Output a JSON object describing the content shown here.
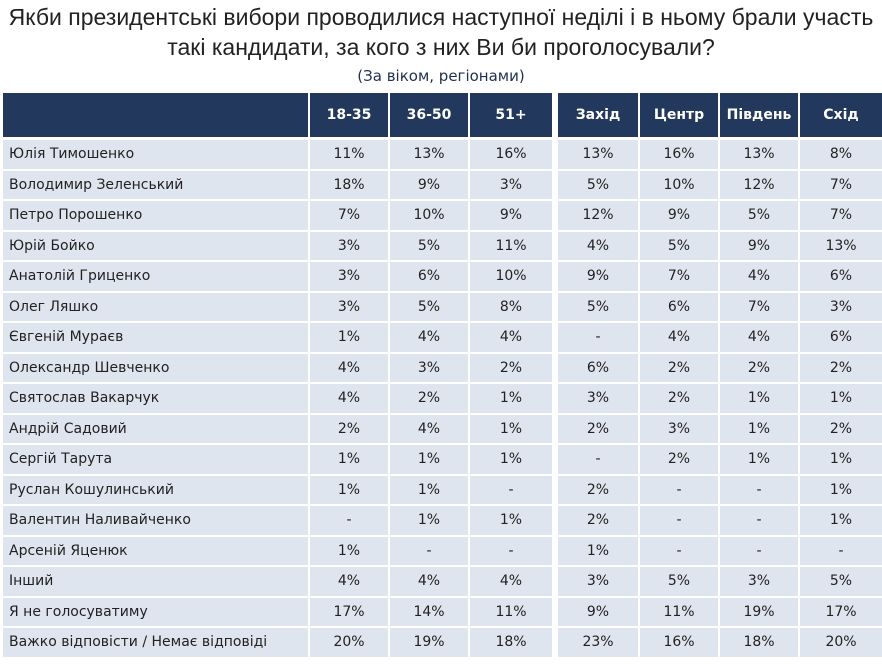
{
  "title": "Якби президентські вибори проводилися наступної неділі і в ньому брали участь такі кандидати, за кого з них Ви би проголосували?",
  "subtitle": "(За віком, регіонами)",
  "table": {
    "columns": [
      "18-35",
      "36-50",
      "51+",
      "Захід",
      "Центр",
      "Південь",
      "Схід"
    ],
    "rows": [
      [
        "Юлія Тимошенко",
        "11%",
        "13%",
        "16%",
        "13%",
        "16%",
        "13%",
        "8%"
      ],
      [
        "Володимир Зеленський",
        "18%",
        "9%",
        "3%",
        "5%",
        "10%",
        "12%",
        "7%"
      ],
      [
        "Петро Порошенко",
        "7%",
        "10%",
        "9%",
        "12%",
        "9%",
        "5%",
        "7%"
      ],
      [
        "Юрій Бойко",
        "3%",
        "5%",
        "11%",
        "4%",
        "5%",
        "9%",
        "13%"
      ],
      [
        "Анатолій Гриценко",
        "3%",
        "6%",
        "10%",
        "9%",
        "7%",
        "4%",
        "6%"
      ],
      [
        "Олег Ляшко",
        "3%",
        "5%",
        "8%",
        "5%",
        "6%",
        "7%",
        "3%"
      ],
      [
        "Євгеній Мураєв",
        "1%",
        "4%",
        "4%",
        "-",
        "4%",
        "4%",
        "6%"
      ],
      [
        "Олександр Шевченко",
        "4%",
        "3%",
        "2%",
        "6%",
        "2%",
        "2%",
        "2%"
      ],
      [
        "Святослав Вакарчук",
        "4%",
        "2%",
        "1%",
        "3%",
        "2%",
        "1%",
        "1%"
      ],
      [
        "Андрій Садовий",
        "2%",
        "4%",
        "1%",
        "2%",
        "3%",
        "1%",
        "2%"
      ],
      [
        "Сергій Тарута",
        "1%",
        "1%",
        "1%",
        "-",
        "2%",
        "1%",
        "1%"
      ],
      [
        "Руслан Кошулинський",
        "1%",
        "1%",
        "-",
        "2%",
        "-",
        "-",
        "1%"
      ],
      [
        "Валентин Наливайченко",
        "-",
        "1%",
        "1%",
        "2%",
        "-",
        "-",
        "1%"
      ],
      [
        "Арсеній Яценюк",
        "1%",
        "-",
        "-",
        "1%",
        "-",
        "-",
        "-"
      ],
      [
        "Інший",
        "4%",
        "4%",
        "4%",
        "3%",
        "5%",
        "3%",
        "5%"
      ],
      [
        "Я не голосуватиму",
        "17%",
        "14%",
        "11%",
        "9%",
        "11%",
        "19%",
        "17%"
      ],
      [
        "Важко відповісти / Немає відповіді",
        "20%",
        "19%",
        "18%",
        "23%",
        "16%",
        "18%",
        "20%"
      ]
    ]
  }
}
